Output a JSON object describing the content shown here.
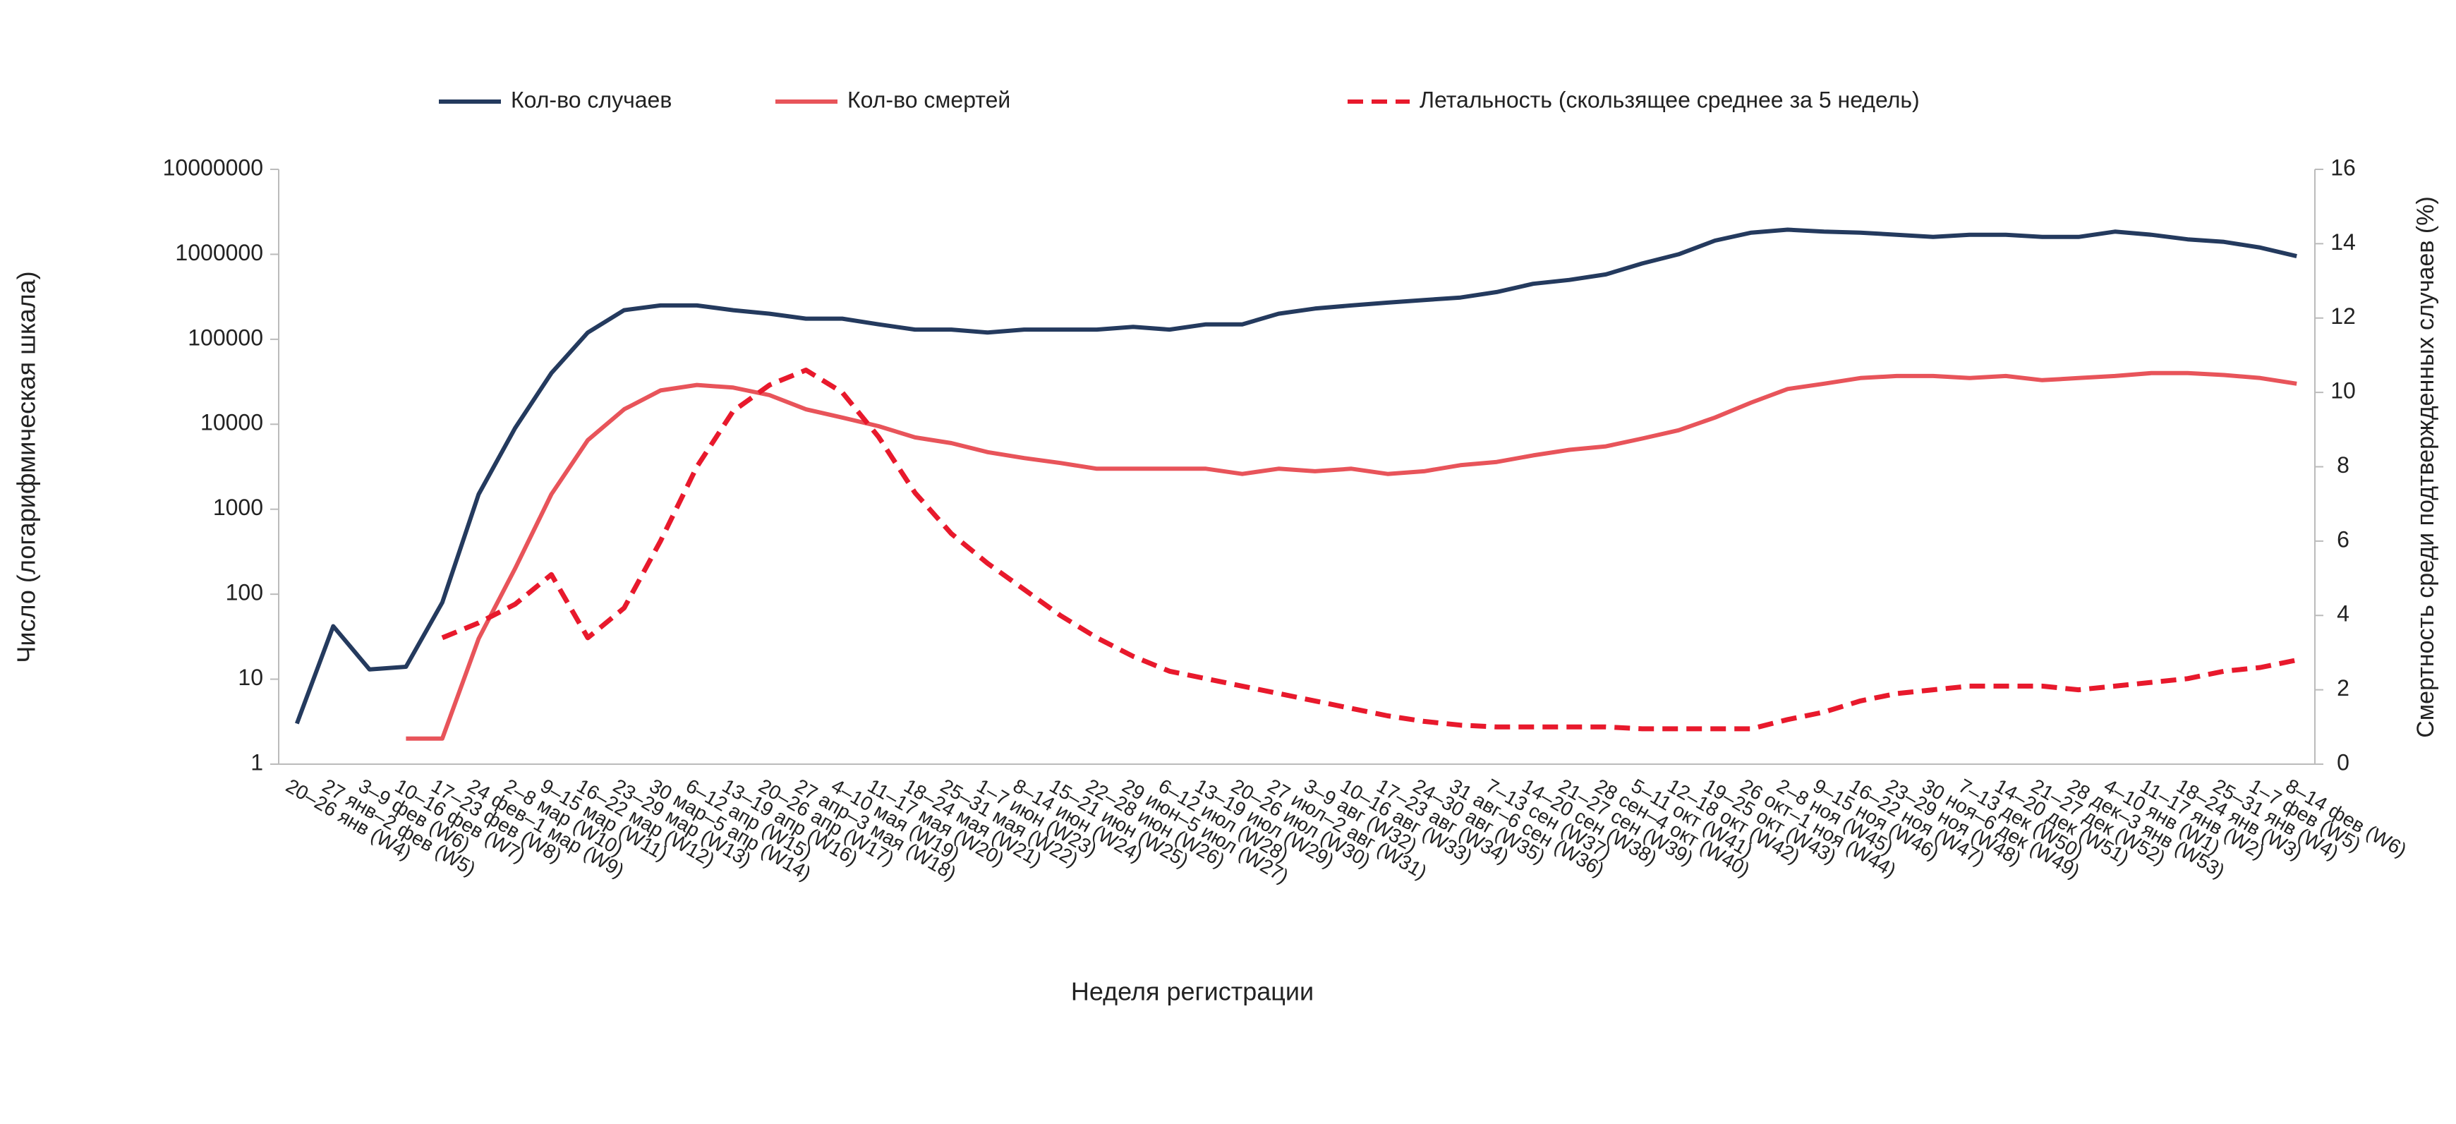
{
  "chart_data": {
    "type": "line",
    "xlabel": "Неделя регистрации",
    "ylabel": "Число (логарифмическая шкала)",
    "y2label": "Смертность среди подтвержденных случаев (%)",
    "categories": [
      "20–26 янв (W4)",
      "27 янв–2 фев (W5)",
      "3–9 фев (W6)",
      "10–16 фев (W7)",
      "17–23 фев (W8)",
      "24 фев–1 мар (W9)",
      "2–8 мар (W10)",
      "9–15 мар (W11)",
      "16–22 мар (W12)",
      "23–29 мар (W13)",
      "30 мар–5 апр (W14)",
      "6–12 апр (W15)",
      "13–19 апр (W16)",
      "20–26 апр (W17)",
      "27 апр–3 мая (W18)",
      "4–10 мая (W19)",
      "11–17 мая (W20)",
      "18–24 мая (W21)",
      "25–31 мая (W22)",
      "1–7 июн (W23)",
      "8–14 июн (W24)",
      "15–21 июн (W25)",
      "22–28 июн (W26)",
      "29 июн–5 июл (W27)",
      "6–12 июл (W28)",
      "13–19 июл (W29)",
      "20–26 июл (W30)",
      "27 июл–2 авг (W31)",
      "3–9 авг (W32)",
      "10–16 авг (W33)",
      "17–23 авг (W34)",
      "24–30 авг (W35)",
      "31 авг–6 сен (W36)",
      "7–13 сен (W37)",
      "14–20 сен (W38)",
      "21–27 сен (W39)",
      "28 сен–4 окт (W40)",
      "5–11 окт (W41)",
      "12–18 окт (W42)",
      "19–25 окт (W43)",
      "26 окт–1 ноя (W44)",
      "2–8 ноя (W45)",
      "9–15 ноя (W46)",
      "16–22 ноя (W47)",
      "23–29 ноя (W48)",
      "30 ноя–6 дек (W49)",
      "7–13 дек (W50)",
      "14–20 дек (W51)",
      "21–27 дек (W52)",
      "28 дек–3 янв (W53)",
      "4–10 янв (W1)",
      "11–17 янв (W2)",
      "18–24 янв (W3)",
      "25–31 янв (W4)",
      "1–7 фев (W5)",
      "8–14 фев (W6)"
    ],
    "series": [
      {
        "name": "Кол-во случаев",
        "color": "#243a5e",
        "dash": false,
        "values": [
          3,
          42,
          13,
          14,
          80,
          1500,
          9000,
          40000,
          120000,
          220000,
          250000,
          250000,
          220000,
          200000,
          175000,
          175000,
          150000,
          130000,
          130000,
          120000,
          130000,
          130000,
          130000,
          140000,
          130000,
          150000,
          150000,
          200000,
          230000,
          250000,
          270000,
          290000,
          310000,
          360000,
          450000,
          500000,
          580000,
          780000,
          1000000,
          1450000,
          1800000,
          1950000,
          1850000,
          1800000,
          1700000,
          1600000,
          1700000,
          1700000,
          1600000,
          1600000,
          1850000,
          1700000,
          1500000,
          1400000,
          1200000,
          950000
        ]
      },
      {
        "name": "Кол-во смертей",
        "color": "#e8545a",
        "dash": false,
        "values": [
          null,
          null,
          null,
          2,
          2,
          30,
          200,
          1500,
          6500,
          15000,
          25000,
          29000,
          27000,
          22000,
          15000,
          12000,
          9500,
          7000,
          6000,
          4700,
          4000,
          3500,
          3000,
          3000,
          3000,
          3000,
          2600,
          3000,
          2800,
          3000,
          2600,
          2800,
          3300,
          3600,
          4300,
          5000,
          5500,
          6800,
          8500,
          12000,
          18000,
          26000,
          30000,
          35000,
          37000,
          37000,
          35000,
          37000,
          33000,
          35000,
          37000,
          40000,
          40000,
          38000,
          35000,
          30000
        ]
      },
      {
        "name": "Летальность (скользящее среднее за 5 недель)",
        "color": "#e8192c",
        "dash": true,
        "axis": "y2",
        "values": [
          null,
          null,
          null,
          null,
          3.4,
          3.8,
          4.3,
          5.1,
          3.4,
          4.2,
          6,
          8,
          9.5,
          10.2,
          10.6,
          10,
          8.8,
          7.3,
          6.2,
          5.4,
          4.7,
          4.0,
          3.4,
          2.9,
          2.5,
          2.3,
          2.1,
          1.9,
          1.7,
          1.5,
          1.3,
          1.15,
          1.05,
          1.0,
          1.0,
          1.0,
          1.0,
          0.95,
          0.95,
          0.95,
          0.95,
          1.2,
          1.4,
          1.7,
          1.9,
          2.0,
          2.1,
          2.1,
          2.1,
          2.0,
          2.1,
          2.2,
          2.3,
          2.5,
          2.6,
          2.8
        ]
      }
    ],
    "ylog": true,
    "ylim": [
      1,
      10000000
    ],
    "yticks": [
      1,
      10,
      100,
      1000,
      10000,
      100000,
      1000000,
      10000000
    ],
    "y2lim": [
      0,
      16
    ],
    "y2ticks": [
      0,
      2,
      4,
      6,
      8,
      10,
      12,
      14,
      16
    ],
    "legend": "top"
  }
}
